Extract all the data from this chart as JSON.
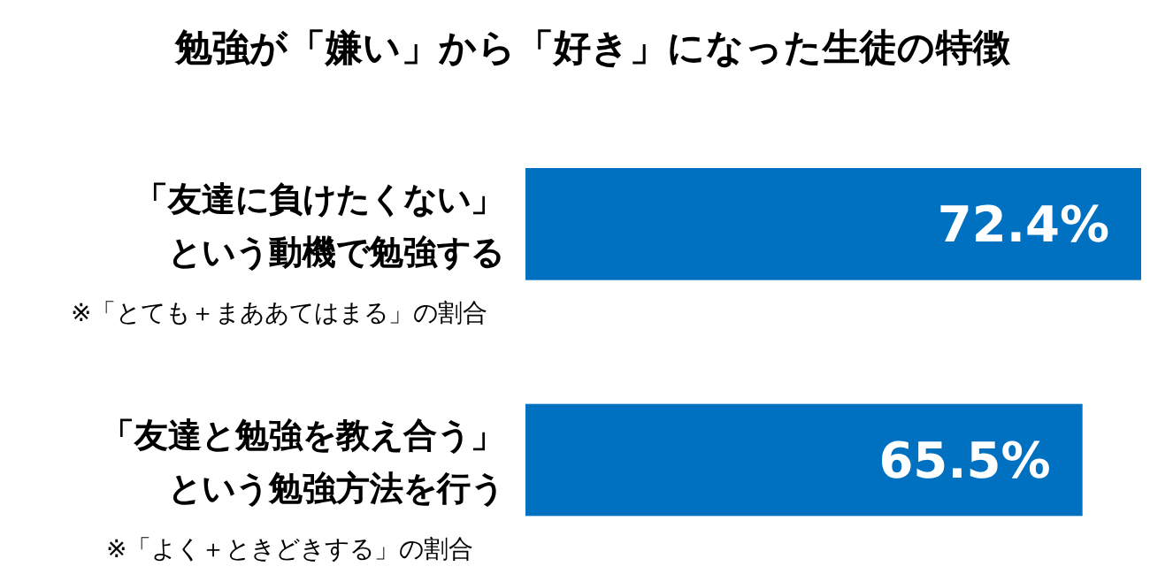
{
  "chart_data": {
    "type": "bar",
    "orientation": "horizontal",
    "title": "勉強が「嫌い」から「好き」になった生徒の特徴",
    "categories": [
      "「友達に負けたくない」という動機で勉強する",
      "「友達と勉強を教え合う」という勉強方法を行う"
    ],
    "values": [
      72.4,
      65.5
    ],
    "color": "#0070c0",
    "data_labels": true,
    "value_labels": [
      "72.4%",
      "65.5%"
    ],
    "annotations": [
      "※「とても＋まああてはまる」の割合",
      "※「よく＋ときどきする」の割合"
    ]
  }
}
